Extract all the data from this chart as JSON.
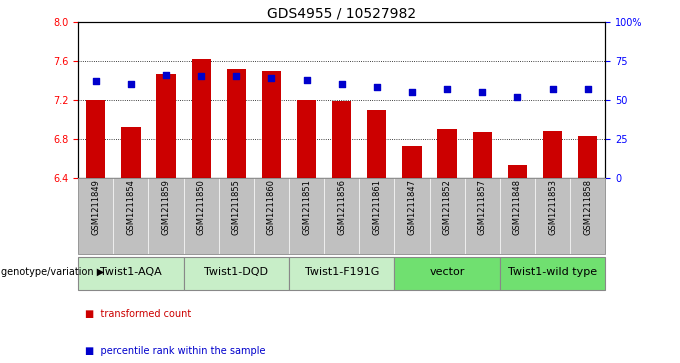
{
  "title": "GDS4955 / 10527982",
  "samples": [
    "GSM1211849",
    "GSM1211854",
    "GSM1211859",
    "GSM1211850",
    "GSM1211855",
    "GSM1211860",
    "GSM1211851",
    "GSM1211856",
    "GSM1211861",
    "GSM1211847",
    "GSM1211852",
    "GSM1211857",
    "GSM1211848",
    "GSM1211853",
    "GSM1211858"
  ],
  "bar_values": [
    7.2,
    6.92,
    7.46,
    7.62,
    7.52,
    7.5,
    7.2,
    7.19,
    7.1,
    6.73,
    6.9,
    6.87,
    6.53,
    6.88,
    6.83
  ],
  "percentile_values": [
    62,
    60,
    66,
    65,
    65,
    64,
    63,
    60,
    58,
    55,
    57,
    55,
    52,
    57,
    57
  ],
  "ylim_left": [
    6.4,
    8.0
  ],
  "ylim_right": [
    0,
    100
  ],
  "yticks_left": [
    6.4,
    6.8,
    7.2,
    7.6,
    8.0
  ],
  "yticks_right": [
    0,
    25,
    50,
    75,
    100
  ],
  "grid_values": [
    6.8,
    7.2,
    7.6
  ],
  "bar_color": "#CC0000",
  "percentile_color": "#0000CC",
  "bar_bottom": 6.4,
  "groups": [
    {
      "label": "Twist1-AQA",
      "start": 0,
      "end": 3,
      "color": "#c8eec8"
    },
    {
      "label": "Twist1-DQD",
      "start": 3,
      "end": 6,
      "color": "#c8eec8"
    },
    {
      "label": "Twist1-F191G",
      "start": 6,
      "end": 9,
      "color": "#c8eec8"
    },
    {
      "label": "vector",
      "start": 9,
      "end": 12,
      "color": "#70e070"
    },
    {
      "label": "Twist1-wild type",
      "start": 12,
      "end": 15,
      "color": "#70e070"
    }
  ],
  "genotype_label": "genotype/variation",
  "legend_items": [
    {
      "label": "transformed count",
      "color": "#CC0000"
    },
    {
      "label": "percentile rank within the sample",
      "color": "#0000CC"
    }
  ],
  "title_fontsize": 10,
  "tick_fontsize": 7,
  "sample_fontsize": 6,
  "group_fontsize": 8,
  "sample_bg_color": "#c0c0c0"
}
